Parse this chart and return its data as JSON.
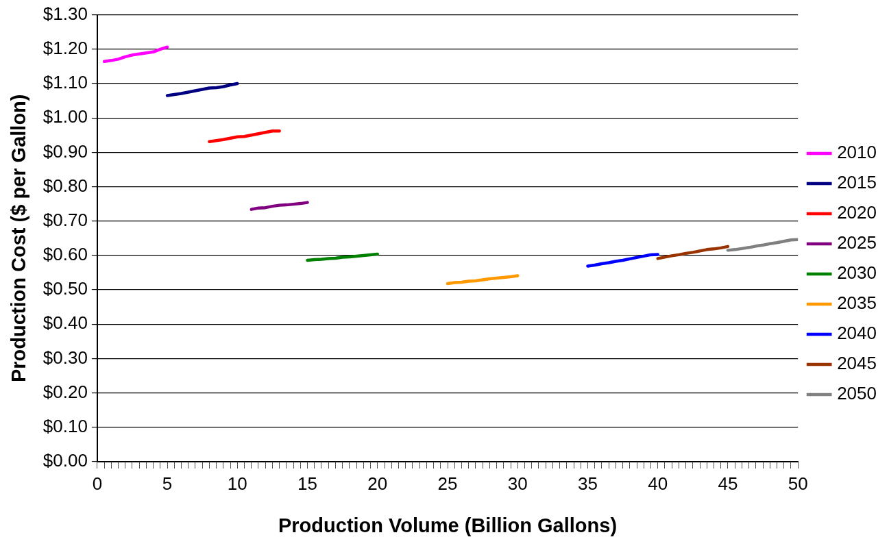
{
  "chart_data": {
    "type": "line",
    "xlabel": "Production Volume (Billion Gallons)",
    "ylabel": "Production Cost ($ per Gallon)",
    "xlim": [
      0,
      50
    ],
    "xticks": [
      0,
      {
        "value": 0.5,
        "label": null
      },
      {
        "value": 1,
        "label": null
      },
      {
        "value": 1.5,
        "label": null
      },
      {
        "value": 2,
        "label": null
      },
      {
        "value": 2.5,
        "label": null
      },
      {
        "value": 3,
        "label": null
      },
      {
        "value": 3.5,
        "label": null
      },
      {
        "value": 4,
        "label": null
      },
      {
        "value": 4.5,
        "label": null
      },
      5,
      {
        "value": 5.5,
        "label": null
      },
      {
        "value": 6,
        "label": null
      },
      {
        "value": 6.5,
        "label": null
      },
      {
        "value": 7,
        "label": null
      },
      {
        "value": 7.5,
        "label": null
      },
      {
        "value": 8,
        "label": null
      },
      {
        "value": 8.5,
        "label": null
      },
      {
        "value": 9,
        "label": null
      },
      {
        "value": 9.5,
        "label": null
      },
      10,
      {
        "value": 10.5,
        "label": null
      },
      {
        "value": 11,
        "label": null
      },
      {
        "value": 11.5,
        "label": null
      },
      {
        "value": 12,
        "label": null
      },
      {
        "value": 12.5,
        "label": null
      },
      {
        "value": 13,
        "label": null
      },
      {
        "value": 13.5,
        "label": null
      },
      {
        "value": 14,
        "label": null
      },
      {
        "value": 14.5,
        "label": null
      },
      15,
      {
        "value": 15.5,
        "label": null
      },
      {
        "value": 16,
        "label": null
      },
      {
        "value": 16.5,
        "label": null
      },
      {
        "value": 17,
        "label": null
      },
      {
        "value": 17.5,
        "label": null
      },
      {
        "value": 18,
        "label": null
      },
      {
        "value": 18.5,
        "label": null
      },
      {
        "value": 19,
        "label": null
      },
      {
        "value": 19.5,
        "label": null
      },
      20,
      {
        "value": 20.5,
        "label": null
      },
      {
        "value": 21,
        "label": null
      },
      {
        "value": 21.5,
        "label": null
      },
      {
        "value": 22,
        "label": null
      },
      {
        "value": 22.5,
        "label": null
      },
      {
        "value": 23,
        "label": null
      },
      {
        "value": 23.5,
        "label": null
      },
      {
        "value": 24,
        "label": null
      },
      {
        "value": 24.5,
        "label": null
      },
      25,
      {
        "value": 25.5,
        "label": null
      },
      {
        "value": 26,
        "label": null
      },
      {
        "value": 26.5,
        "label": null
      },
      {
        "value": 27,
        "label": null
      },
      {
        "value": 27.5,
        "label": null
      },
      {
        "value": 28,
        "label": null
      },
      {
        "value": 28.5,
        "label": null
      },
      {
        "value": 29,
        "label": null
      },
      {
        "value": 29.5,
        "label": null
      },
      30,
      {
        "value": 30.5,
        "label": null
      },
      {
        "value": 31,
        "label": null
      },
      {
        "value": 31.5,
        "label": null
      },
      {
        "value": 32,
        "label": null
      },
      {
        "value": 32.5,
        "label": null
      },
      {
        "value": 33,
        "label": null
      },
      {
        "value": 33.5,
        "label": null
      },
      {
        "value": 34,
        "label": null
      },
      {
        "value": 34.5,
        "label": null
      },
      35,
      {
        "value": 35.5,
        "label": null
      },
      {
        "value": 36,
        "label": null
      },
      {
        "value": 36.5,
        "label": null
      },
      {
        "value": 37,
        "label": null
      },
      {
        "value": 37.5,
        "label": null
      },
      {
        "value": 38,
        "label": null
      },
      {
        "value": 38.5,
        "label": null
      },
      {
        "value": 39,
        "label": null
      },
      {
        "value": 39.5,
        "label": null
      },
      40,
      {
        "value": 40.5,
        "label": null
      },
      {
        "value": 41,
        "label": null
      },
      {
        "value": 41.5,
        "label": null
      },
      {
        "value": 42,
        "label": null
      },
      {
        "value": 42.5,
        "label": null
      },
      {
        "value": 43,
        "label": null
      },
      {
        "value": 43.5,
        "label": null
      },
      {
        "value": 44,
        "label": null
      },
      {
        "value": 44.5,
        "label": null
      },
      45,
      {
        "value": 45.5,
        "label": null
      },
      {
        "value": 46,
        "label": null
      },
      {
        "value": 46.5,
        "label": null
      },
      {
        "value": 47,
        "label": null
      },
      {
        "value": 47.5,
        "label": null
      },
      {
        "value": 48,
        "label": null
      },
      {
        "value": 48.5,
        "label": null
      },
      {
        "value": 49,
        "label": null
      },
      {
        "value": 49.5,
        "label": null
      },
      50
    ],
    "ylim": [
      0,
      1.3
    ],
    "yticks": [
      {
        "value": 0,
        "label": "$0.00"
      },
      {
        "value": 0.1,
        "label": "$0.10"
      },
      {
        "value": 0.2,
        "label": "$0.20"
      },
      {
        "value": 0.3,
        "label": "$0.30"
      },
      {
        "value": 0.4,
        "label": "$0.40"
      },
      {
        "value": 0.5,
        "label": "$0.50"
      },
      {
        "value": 0.6,
        "label": "$0.60"
      },
      {
        "value": 0.7,
        "label": "$0.70"
      },
      {
        "value": 0.8,
        "label": "$0.80"
      },
      {
        "value": 0.9,
        "label": "$0.90"
      },
      {
        "value": 1.0,
        "label": "$1.00"
      },
      {
        "value": 1.1,
        "label": "$1.10"
      },
      {
        "value": 1.2,
        "label": "$1.20"
      },
      {
        "value": 1.3,
        "label": "$1.30"
      }
    ],
    "grid": "y",
    "legend": "right",
    "marker": "none",
    "line_style": "solid",
    "series": [
      {
        "name": "2010",
        "color": "#ff00ff",
        "x": [
          0.5,
          1,
          1.5,
          2,
          2.5,
          3,
          3.5,
          4,
          4.5,
          5
        ],
        "values": [
          1.164,
          1.167,
          1.171,
          1.178,
          1.183,
          1.186,
          1.189,
          1.192,
          1.2,
          1.206
        ]
      },
      {
        "name": "2015",
        "color": "#000080",
        "x": [
          5,
          5.5,
          6,
          6.5,
          7,
          7.5,
          8,
          8.5,
          9,
          9.5,
          10
        ],
        "values": [
          1.065,
          1.068,
          1.071,
          1.075,
          1.079,
          1.083,
          1.087,
          1.088,
          1.091,
          1.096,
          1.1
        ]
      },
      {
        "name": "2020",
        "color": "#ff0000",
        "x": [
          8,
          8.5,
          9,
          9.5,
          10,
          10.5,
          11,
          11.5,
          12,
          12.5,
          13
        ],
        "values": [
          0.931,
          0.934,
          0.937,
          0.941,
          0.945,
          0.946,
          0.95,
          0.954,
          0.958,
          0.962,
          0.962
        ]
      },
      {
        "name": "2025",
        "color": "#800080",
        "x": [
          11,
          11.5,
          12,
          12.5,
          13,
          13.5,
          14,
          14.5,
          15
        ],
        "values": [
          0.734,
          0.738,
          0.739,
          0.743,
          0.746,
          0.747,
          0.749,
          0.751,
          0.754
        ]
      },
      {
        "name": "2030",
        "color": "#008000",
        "x": [
          15,
          15.5,
          16,
          16.5,
          17,
          17.5,
          18,
          18.5,
          19,
          19.5,
          20
        ],
        "values": [
          0.586,
          0.588,
          0.589,
          0.591,
          0.592,
          0.595,
          0.596,
          0.598,
          0.6,
          0.602,
          0.604
        ]
      },
      {
        "name": "2035",
        "color": "#ff9900",
        "x": [
          25,
          25.5,
          26,
          26.5,
          27,
          27.5,
          28,
          28.5,
          29,
          29.5,
          30
        ],
        "values": [
          0.518,
          0.521,
          0.522,
          0.525,
          0.526,
          0.529,
          0.532,
          0.534,
          0.536,
          0.538,
          0.541
        ]
      },
      {
        "name": "2040",
        "color": "#0000ff",
        "x": [
          35,
          35.5,
          36,
          36.5,
          37,
          37.5,
          38,
          38.5,
          39,
          39.5,
          40
        ],
        "values": [
          0.569,
          0.572,
          0.576,
          0.579,
          0.583,
          0.586,
          0.59,
          0.594,
          0.598,
          0.602,
          0.603
        ]
      },
      {
        "name": "2045",
        "color": "#993300",
        "x": [
          40,
          40.5,
          41,
          41.5,
          42,
          42.5,
          43,
          43.5,
          44,
          44.5,
          45
        ],
        "values": [
          0.591,
          0.595,
          0.599,
          0.602,
          0.606,
          0.609,
          0.613,
          0.617,
          0.619,
          0.622,
          0.626
        ]
      },
      {
        "name": "2050",
        "color": "#808080",
        "x": [
          45,
          45.5,
          46,
          46.5,
          47,
          47.5,
          48,
          48.5,
          49,
          49.5,
          50
        ],
        "values": [
          0.615,
          0.617,
          0.62,
          0.623,
          0.627,
          0.63,
          0.634,
          0.637,
          0.641,
          0.645,
          0.646
        ]
      }
    ]
  }
}
